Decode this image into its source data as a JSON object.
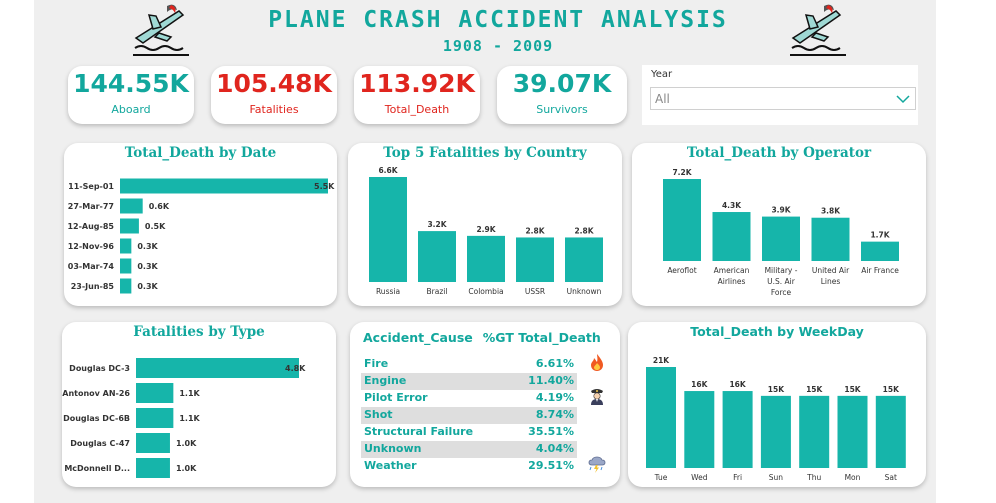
{
  "header": {
    "title": "PLANE CRASH ACCIDENT ANALYSIS",
    "subtitle": "1908 - 2009"
  },
  "kpis": [
    {
      "value": "144.55K",
      "label": "Aboard",
      "color": "#12a79d"
    },
    {
      "value": "105.48K",
      "label": "Fatalities",
      "color": "#e0251e"
    },
    {
      "value": "113.92K",
      "label": "Total_Death",
      "color": "#e0251e"
    },
    {
      "value": "39.07K",
      "label": "Survivors",
      "color": "#12a79d"
    }
  ],
  "slicer": {
    "label": "Year",
    "value": "All",
    "icon": "chevron-down-icon"
  },
  "colors": {
    "accent": "#12a79d",
    "bar": "#16b5aa",
    "alert": "#e0251e"
  },
  "chart_data": [
    {
      "type": "bar",
      "orientation": "horizontal",
      "title": "Total_Death by Date",
      "categories": [
        "11-Sep-01",
        "27-Mar-77",
        "12-Aug-85",
        "12-Nov-96",
        "03-Mar-74",
        "23-Jun-85"
      ],
      "values": [
        5.5,
        0.6,
        0.5,
        0.3,
        0.3,
        0.3
      ],
      "labels": [
        "5.5K",
        "0.6K",
        "0.5K",
        "0.3K",
        "0.3K",
        "0.3K"
      ],
      "unit": "K",
      "xlim": [
        0,
        5.5
      ]
    },
    {
      "type": "bar",
      "orientation": "vertical",
      "title": "Top 5 Fatalities by Country",
      "categories": [
        "Russia",
        "Brazil",
        "Colombia",
        "USSR",
        "Unknown"
      ],
      "values": [
        6.6,
        3.2,
        2.9,
        2.8,
        2.8
      ],
      "labels": [
        "6.6K",
        "3.2K",
        "2.9K",
        "2.8K",
        "2.8K"
      ],
      "unit": "K",
      "ylim": [
        0,
        6.6
      ]
    },
    {
      "type": "bar",
      "orientation": "vertical",
      "title": "Total_Death by Operator",
      "categories": [
        "Aeroflot",
        "American Airlines",
        "Military - U.S. Air Force",
        "United Air Lines",
        "Air France"
      ],
      "values": [
        7.2,
        4.3,
        3.9,
        3.8,
        1.7
      ],
      "labels": [
        "7.2K",
        "4.3K",
        "3.9K",
        "3.8K",
        "1.7K"
      ],
      "unit": "K",
      "ylim": [
        0,
        7.2
      ]
    },
    {
      "type": "bar",
      "orientation": "horizontal",
      "title": "Fatalities by Type",
      "categories": [
        "Douglas DC-3",
        "Antonov AN-26",
        "Douglas DC-6B",
        "Douglas C-47",
        "McDonnell D..."
      ],
      "values": [
        4.8,
        1.1,
        1.1,
        1.0,
        1.0
      ],
      "labels": [
        "4.8K",
        "1.1K",
        "1.1K",
        "1.0K",
        "1.0K"
      ],
      "unit": "K",
      "xlim": [
        0,
        4.8
      ]
    },
    {
      "type": "table",
      "columns": [
        "Accident_Cause",
        "%GT Total_Death"
      ],
      "rows": [
        {
          "cause": "Fire",
          "pct": "6.61%",
          "icon": "fire-icon"
        },
        {
          "cause": "Engine",
          "pct": "11.40%",
          "icon": ""
        },
        {
          "cause": "Pilot Error",
          "pct": "4.19%",
          "icon": "pilot-icon"
        },
        {
          "cause": "Shot",
          "pct": "8.74%",
          "icon": ""
        },
        {
          "cause": "Structural Failure",
          "pct": "35.51%",
          "icon": ""
        },
        {
          "cause": "Unknown",
          "pct": "4.04%",
          "icon": ""
        },
        {
          "cause": "Weather",
          "pct": "29.51%",
          "icon": "storm-icon"
        }
      ]
    },
    {
      "type": "bar",
      "orientation": "vertical",
      "title": "Total_Death by WeekDay",
      "categories": [
        "Tue",
        "Wed",
        "Fri",
        "Sun",
        "Thu",
        "Mon",
        "Sat"
      ],
      "values": [
        21,
        16,
        16,
        15,
        15,
        15,
        15
      ],
      "labels": [
        "21K",
        "16K",
        "16K",
        "15K",
        "15K",
        "15K",
        "15K"
      ],
      "unit": "K",
      "ylim": [
        0,
        21
      ]
    }
  ]
}
